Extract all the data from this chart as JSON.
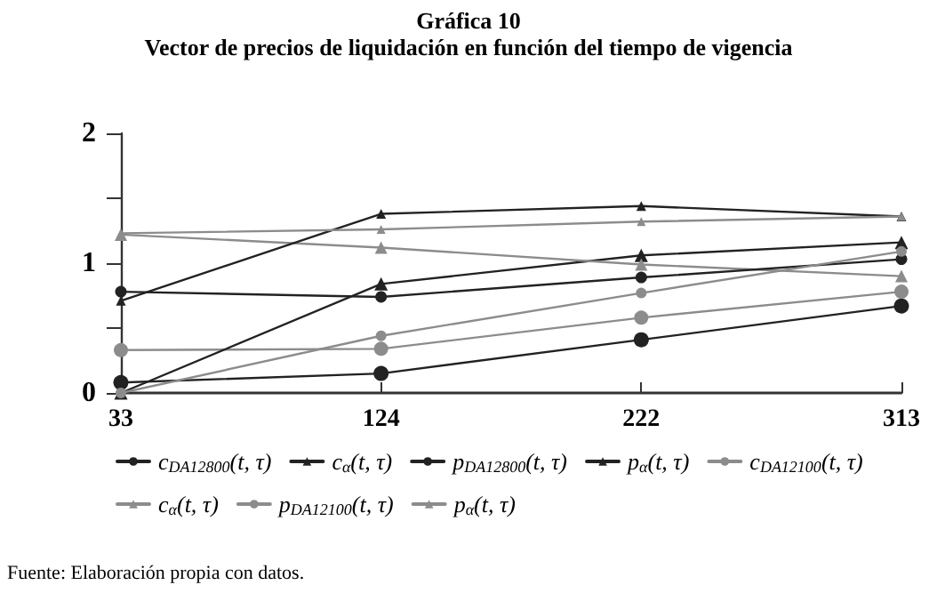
{
  "chart_data": {
    "type": "line",
    "title": "Gráfica 10",
    "subtitle": "Vector de precios de liquidación en función del tiempo de vigencia",
    "categories": [
      "33",
      "124",
      "222",
      "313"
    ],
    "series": [
      {
        "name": "c$_{DA12800}$(t, τ)",
        "color": "#222222",
        "marker": "circle",
        "values": [
          0.08,
          0.15,
          0.41,
          0.67
        ]
      },
      {
        "name": "c$_{DA12100}$(t, τ)",
        "color": "#8c8c8c",
        "marker": "circle",
        "values": [
          0.33,
          0.34,
          0.58,
          0.78
        ]
      },
      {
        "name": "c$_{α}$(t, τ)",
        "color": "#222222",
        "marker": "triangle",
        "values": [
          0,
          0.84,
          1.06,
          1.16
        ]
      },
      {
        "name": "c$_{α}$(t, τ)",
        "color": "#8c8c8c",
        "marker": "triangle",
        "values": [
          1.22,
          1.12,
          0.99,
          0.9
        ]
      },
      {
        "name": "p$_{DA12800}$(t, τ)",
        "color": "#222222",
        "marker": "circle",
        "values": [
          0.78,
          0.74,
          0.89,
          1.03
        ]
      },
      {
        "name": "p$_{DA12100}$(t, τ)",
        "color": "#8c8c8c",
        "marker": "circle",
        "values": [
          0,
          0.44,
          0.77,
          1.09
        ]
      },
      {
        "name": "p$_{α}$(t, τ)",
        "color": "#222222",
        "marker": "triangle",
        "values": [
          0.71,
          1.38,
          1.44,
          1.36
        ]
      },
      {
        "name": "p$_{α}$(t, τ)",
        "color": "#8c8c8c",
        "marker": "triangle",
        "values": [
          1.23,
          1.26,
          1.32,
          1.36
        ]
      }
    ],
    "ylim": [
      0,
      2
    ],
    "yticks": [
      0,
      {
        "value": 0.5,
        "label": null
      },
      1,
      {
        "value": 1.5,
        "label": null
      },
      2
    ],
    "grid": false,
    "legend": "bottom",
    "line_style": "solid",
    "annotations": [
      "Fuente: Elaboración propia con datos."
    ]
  }
}
